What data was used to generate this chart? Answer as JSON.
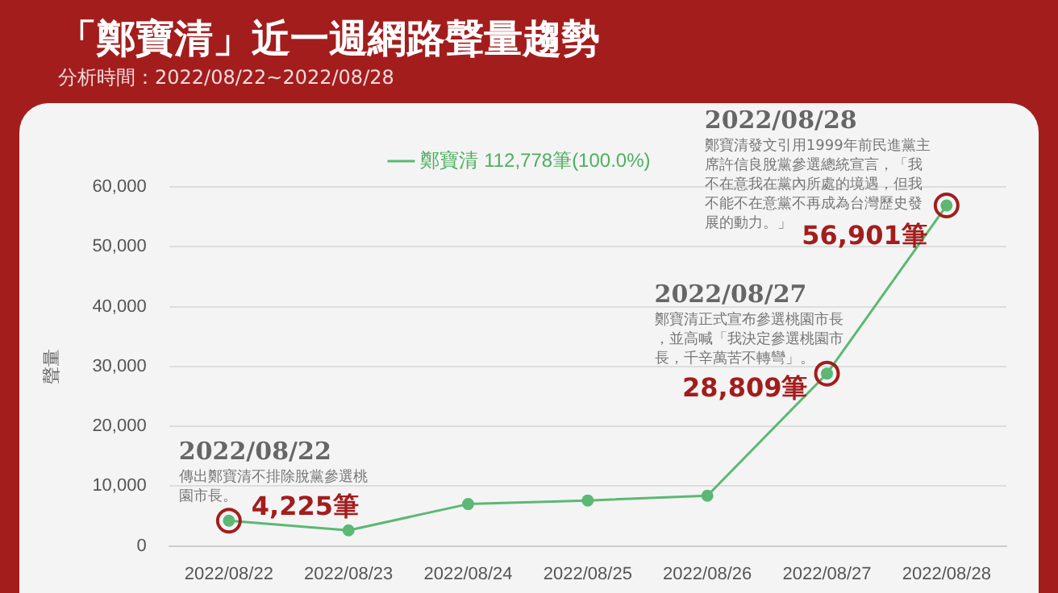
{
  "chart_data": {
    "type": "line",
    "title": "「鄭寶清」近一週網路聲量趨勢",
    "subtitle": "分析時間：2022/08/22~2022/08/28",
    "ylabel": "聲量",
    "categories": [
      "2022/08/22",
      "2022/08/23",
      "2022/08/24",
      "2022/08/25",
      "2022/08/26",
      "2022/08/27",
      "2022/08/28"
    ],
    "series": [
      {
        "name": "鄭寶清 112,778筆(100.0%)",
        "color": "#5cb874",
        "values": [
          4225,
          2600,
          7000,
          7600,
          8400,
          28809,
          56901
        ],
        "value_labels": [
          "4,225筆",
          null,
          null,
          null,
          null,
          "28,809筆",
          "56,901筆"
        ]
      }
    ],
    "ylim": [
      0,
      60000
    ],
    "yticks": [
      0,
      {
        "value": 10000,
        "label": "10,000"
      },
      {
        "value": 20000,
        "label": "20,000"
      },
      {
        "value": 30000,
        "label": "30,000"
      },
      {
        "value": 40000,
        "label": "40,000"
      },
      {
        "value": 50000,
        "label": "50,000"
      },
      {
        "value": 60000,
        "label": "60,000"
      }
    ],
    "grid": "y",
    "legend": "top",
    "marker": "circle",
    "line_style": "solid",
    "annotations": [
      {
        "text": "2022/08/22\n傳出鄭寶清不排除脫黨參選桃園市長。",
        "x": "2022/08/22",
        "y": 4225
      },
      {
        "text": "2022/08/27\n鄭寶清正式宣布參選桃園市長，並高喊「我決定參選桃園市長，千辛萬苦不轉彎」。",
        "x": "2022/08/27",
        "y": 28809
      },
      {
        "text": "2022/08/28\n鄭寶清發文引用1999年前民進黨主席許信良脫黨參選總統宣言，「我不在意我在黨內所處的境遇，但我不能不在意黨不再成為台灣歷史發展的動力。」",
        "x": "2022/08/28",
        "y": 56901
      }
    ]
  }
}
